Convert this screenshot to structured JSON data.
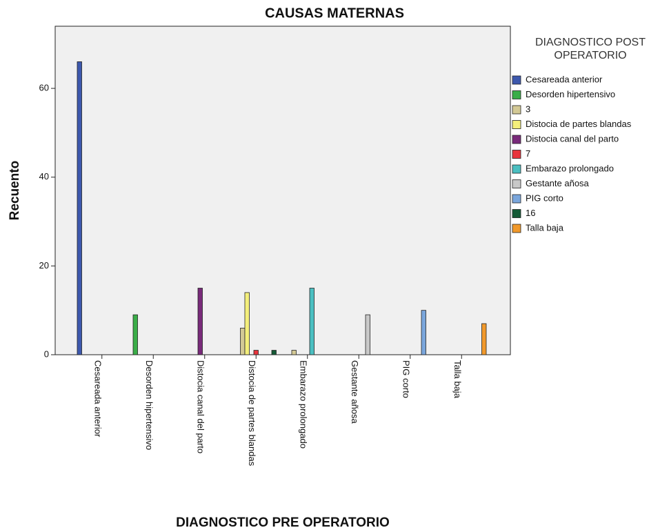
{
  "chart_data": {
    "type": "bar",
    "title": "CAUSAS MATERNAS",
    "x_label": "DIAGNOSTICO PRE OPERATORIO",
    "y_label": "Recuento",
    "legend_title": [
      "DIAGNOSTICO POST",
      "OPERATORIO"
    ],
    "legend_position": "right",
    "categories": [
      "Cesareada anterior",
      "Desorden hipertensivo",
      "Distocia canal del parto",
      "Distocia de partes blandas",
      "Embarazo prolongado",
      "Gestante añosa",
      "PIG corto",
      "Talla baja"
    ],
    "series": [
      {
        "name": "Cesareada anterior",
        "color": "#3d58ad",
        "values": [
          66,
          null,
          null,
          null,
          null,
          null,
          null,
          null
        ]
      },
      {
        "name": "Desorden hipertensivo",
        "color": "#3aad48",
        "values": [
          null,
          9,
          null,
          null,
          null,
          null,
          null,
          null
        ]
      },
      {
        "name": "3",
        "color": "#d3c995",
        "values": [
          null,
          null,
          null,
          6,
          1,
          null,
          null,
          null
        ]
      },
      {
        "name": "Distocia de partes blandas",
        "color": "#f4ef7b",
        "values": [
          null,
          null,
          null,
          14,
          null,
          null,
          null,
          null
        ]
      },
      {
        "name": "Distocia canal del parto",
        "color": "#792a7a",
        "values": [
          null,
          null,
          15,
          null,
          null,
          null,
          null,
          null
        ]
      },
      {
        "name": "7",
        "color": "#e8343c",
        "values": [
          null,
          null,
          null,
          1,
          null,
          null,
          null,
          null
        ]
      },
      {
        "name": "Embarazo prolongado",
        "color": "#4bbfc1",
        "values": [
          null,
          null,
          null,
          null,
          15,
          null,
          null,
          null
        ]
      },
      {
        "name": "Gestante añosa",
        "color": "#c8c8c8",
        "values": [
          null,
          null,
          null,
          null,
          null,
          9,
          null,
          null
        ]
      },
      {
        "name": "PIG corto",
        "color": "#7aa6dc",
        "values": [
          null,
          null,
          null,
          null,
          null,
          null,
          10,
          null
        ]
      },
      {
        "name": "16",
        "color": "#145a36",
        "values": [
          null,
          null,
          null,
          1,
          null,
          null,
          null,
          null
        ]
      },
      {
        "name": "Talla baja",
        "color": "#f1992b",
        "values": [
          null,
          null,
          null,
          null,
          null,
          null,
          null,
          7
        ]
      }
    ],
    "ylim": [
      0,
      74
    ],
    "yticks": [
      0,
      20,
      40,
      60
    ],
    "grid": false
  }
}
